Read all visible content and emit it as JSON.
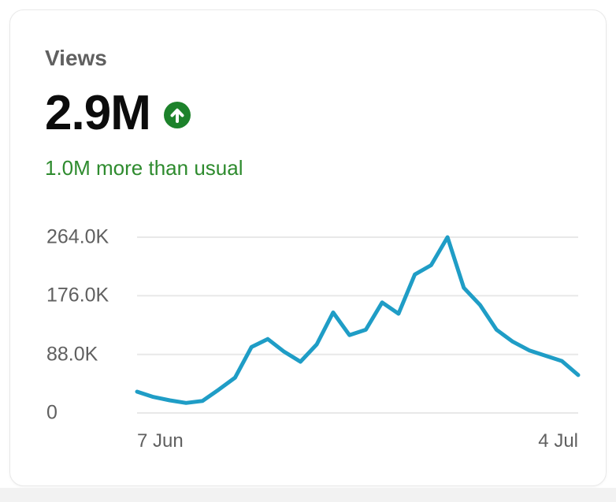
{
  "card": {
    "title": "Views",
    "total_views": "2.9M",
    "trend_icon": "arrow-up-circle",
    "comparison": "1.0M more than usual",
    "colors": {
      "trend_circle_green": "#1d822b",
      "comparison_green": "#2e8b2e",
      "metric_black": "#0c0c0c",
      "label_gray": "#606060"
    }
  },
  "chart_data": {
    "type": "line",
    "title": "Views",
    "series": [
      {
        "name": "Views",
        "values": [
          32000,
          24000,
          19000,
          15000,
          18000,
          35000,
          53000,
          99000,
          111000,
          92000,
          77000,
          103000,
          151000,
          117000,
          125000,
          166000,
          149000,
          208000,
          222000,
          264000,
          188000,
          162000,
          125000,
          107000,
          94000,
          86000,
          78000,
          57000
        ]
      }
    ],
    "x_point_count": 28,
    "xtick_labels": [
      "7 Jun",
      "4 Jul"
    ],
    "ytick_labels": [
      "264.0K",
      "176.0K",
      "88.0K",
      "0"
    ],
    "ytick_values": [
      264000,
      176000,
      88000,
      0
    ],
    "ylim": [
      0,
      264000
    ],
    "grid": "horizontal",
    "legend": "none",
    "line_color": "#1f9dc6",
    "grid_color": "#e8e8e8"
  }
}
